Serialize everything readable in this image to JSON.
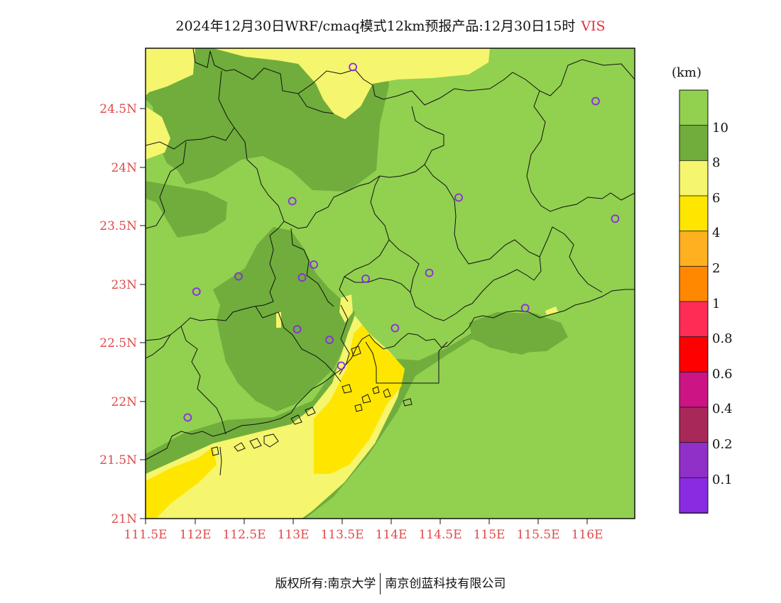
{
  "title": {
    "main": "2024年12月30日WRF/cmaq模式12km预报产品:12月30日15时",
    "variable": "VIS"
  },
  "colorbar": {
    "unit": "(km)",
    "labels": [
      "10",
      "8",
      "6",
      "4",
      "2",
      "1",
      "0.8",
      "0.6",
      "0.4",
      "0.2",
      "0.1"
    ],
    "colors": [
      "#92d050",
      "#70ad3c",
      "#f5f56e",
      "#ffe600",
      "#ffb020",
      "#ff8800",
      "#ff2d55",
      "#ff0000",
      "#cc1485",
      "#a8285a",
      "#9030c8",
      "#8a2be2"
    ]
  },
  "axes": {
    "y_ticks": [
      "24.5N",
      "24N",
      "23.5N",
      "23N",
      "22.5N",
      "22N",
      "21.5N",
      "21N"
    ],
    "x_ticks": [
      "111.5E",
      "112E",
      "112.5E",
      "113E",
      "113.5E",
      "114E",
      "114.5E",
      "115E",
      "115.5E",
      "116E"
    ]
  },
  "stations": [
    {
      "lon": 113.62,
      "lat": 24.84
    },
    {
      "lon": 116.1,
      "lat": 24.55
    },
    {
      "lon": 113.0,
      "lat": 23.7
    },
    {
      "lon": 114.7,
      "lat": 23.73
    },
    {
      "lon": 116.3,
      "lat": 23.55
    },
    {
      "lon": 113.22,
      "lat": 23.16
    },
    {
      "lon": 113.1,
      "lat": 23.05
    },
    {
      "lon": 112.45,
      "lat": 23.06
    },
    {
      "lon": 113.75,
      "lat": 23.04
    },
    {
      "lon": 114.4,
      "lat": 23.09
    },
    {
      "lon": 112.02,
      "lat": 22.93
    },
    {
      "lon": 115.38,
      "lat": 22.79
    },
    {
      "lon": 113.05,
      "lat": 22.61
    },
    {
      "lon": 114.05,
      "lat": 22.62
    },
    {
      "lon": 113.38,
      "lat": 22.52
    },
    {
      "lon": 113.5,
      "lat": 22.3
    },
    {
      "lon": 111.93,
      "lat": 21.86
    }
  ],
  "footer": {
    "left": "版权所有:南京大学",
    "right": "南京创蓝科技有限公司"
  }
}
